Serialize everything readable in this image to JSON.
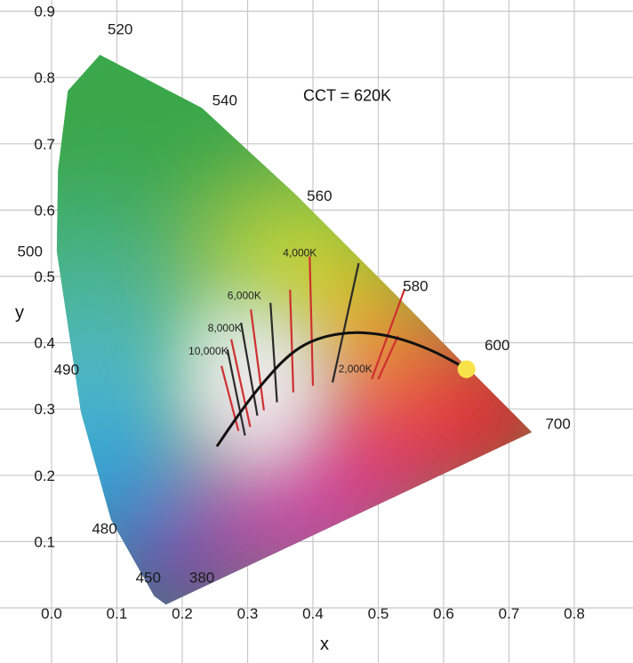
{
  "chart_data": {
    "type": "scatter",
    "title": "",
    "xlabel": "x",
    "ylabel": "y",
    "xlim": [
      0.0,
      0.85
    ],
    "ylim": [
      0.0,
      0.9
    ],
    "grid": true,
    "x_ticks": [
      "0.0",
      "0.1",
      "0.2",
      "0.3",
      "0.4",
      "0.5",
      "0.6",
      "0.7",
      "0.8"
    ],
    "y_ticks": [
      "0.1",
      "0.2",
      "0.3",
      "0.4",
      "0.5",
      "0.6",
      "0.7",
      "0.8",
      "0.9"
    ],
    "spectral_locus": [
      {
        "nm": "380",
        "x": 0.175,
        "y": 0.005
      },
      {
        "nm": "450",
        "x": 0.157,
        "y": 0.018
      },
      {
        "nm": "480",
        "x": 0.091,
        "y": 0.133
      },
      {
        "nm": "490",
        "x": 0.045,
        "y": 0.295
      },
      {
        "nm": "500",
        "x": 0.008,
        "y": 0.538
      },
      {
        "nm": "",
        "x": 0.01,
        "y": 0.66
      },
      {
        "nm": "",
        "x": 0.025,
        "y": 0.78
      },
      {
        "nm": "520",
        "x": 0.074,
        "y": 0.834
      },
      {
        "nm": "540",
        "x": 0.23,
        "y": 0.754
      },
      {
        "nm": "560",
        "x": 0.373,
        "y": 0.624
      },
      {
        "nm": "580",
        "x": 0.512,
        "y": 0.487
      },
      {
        "nm": "600",
        "x": 0.627,
        "y": 0.372
      },
      {
        "nm": "700",
        "x": 0.735,
        "y": 0.265
      }
    ],
    "wavelength_labels": [
      {
        "text": "520",
        "x": 0.105,
        "y": 0.865
      },
      {
        "text": "540",
        "x": 0.265,
        "y": 0.758
      },
      {
        "text": "560",
        "x": 0.41,
        "y": 0.614
      },
      {
        "text": "580",
        "x": 0.557,
        "y": 0.478
      },
      {
        "text": "600",
        "x": 0.682,
        "y": 0.389
      },
      {
        "text": "700",
        "x": 0.775,
        "y": 0.27
      },
      {
        "text": "500",
        "x": -0.033,
        "y": 0.53
      },
      {
        "text": "490",
        "x": 0.023,
        "y": 0.352
      },
      {
        "text": "480",
        "x": 0.081,
        "y": 0.112
      },
      {
        "text": "450",
        "x": 0.148,
        "y": 0.038
      },
      {
        "text": "380",
        "x": 0.23,
        "y": 0.038
      }
    ],
    "planckian_locus": [
      {
        "x": 0.254,
        "y": 0.245
      },
      {
        "x": 0.285,
        "y": 0.29
      },
      {
        "x": 0.315,
        "y": 0.33
      },
      {
        "x": 0.36,
        "y": 0.38
      },
      {
        "x": 0.4,
        "y": 0.405
      },
      {
        "x": 0.45,
        "y": 0.416
      },
      {
        "x": 0.5,
        "y": 0.414
      },
      {
        "x": 0.545,
        "y": 0.403
      },
      {
        "x": 0.59,
        "y": 0.385
      },
      {
        "x": 0.625,
        "y": 0.366
      }
    ],
    "isotherms": [
      {
        "label": "10,000K",
        "x1": 0.286,
        "y1": 0.267,
        "x2": 0.26,
        "y2": 0.365
      },
      {
        "label": "",
        "x1": 0.296,
        "y1": 0.26,
        "x2": 0.269,
        "y2": 0.39
      },
      {
        "label": "8,000K",
        "x1": 0.304,
        "y1": 0.273,
        "x2": 0.275,
        "y2": 0.405
      },
      {
        "label": "",
        "x1": 0.315,
        "y1": 0.29,
        "x2": 0.29,
        "y2": 0.43
      },
      {
        "label": "6,000K",
        "x1": 0.325,
        "y1": 0.298,
        "x2": 0.305,
        "y2": 0.45
      },
      {
        "label": "",
        "x1": 0.345,
        "y1": 0.31,
        "x2": 0.335,
        "y2": 0.46
      },
      {
        "label": "",
        "x1": 0.37,
        "y1": 0.325,
        "x2": 0.365,
        "y2": 0.48
      },
      {
        "label": "4,000K",
        "x1": 0.4,
        "y1": 0.335,
        "x2": 0.395,
        "y2": 0.53
      },
      {
        "label": "",
        "x1": 0.43,
        "y1": 0.34,
        "x2": 0.47,
        "y2": 0.52
      },
      {
        "label": "",
        "x1": 0.49,
        "y1": 0.345,
        "x2": 0.54,
        "y2": 0.48
      },
      {
        "label": "2,000K",
        "x1": 0.5,
        "y1": 0.345,
        "x2": 0.53,
        "y2": 0.41
      }
    ],
    "isotherm_colors": [
      "#cf3030",
      "#2a2a2a",
      "#cf3030",
      "#2a2a2a",
      "#cf3030",
      "#2a2a2a",
      "#cf3030",
      "#cf3030",
      "#2a2a2a",
      "#cf3030",
      "#cf3030"
    ],
    "isotherm_labels": [
      {
        "text": "10,000K",
        "x": 0.24,
        "y": 0.382
      },
      {
        "text": "8,000K",
        "x": 0.265,
        "y": 0.417
      },
      {
        "text": "6,000K",
        "x": 0.295,
        "y": 0.466
      },
      {
        "text": "4,000K",
        "x": 0.38,
        "y": 0.53
      },
      {
        "text": "2,000K",
        "x": 0.465,
        "y": 0.355
      }
    ],
    "highlight_point": {
      "x": 0.635,
      "y": 0.36,
      "color": "#f7e24a"
    },
    "annotation": {
      "text": "CCT = 620K",
      "x": 0.385,
      "y": 0.765
    }
  },
  "colors": {
    "grid": "#c8c8c8",
    "white_point": "#f4f0f2"
  }
}
